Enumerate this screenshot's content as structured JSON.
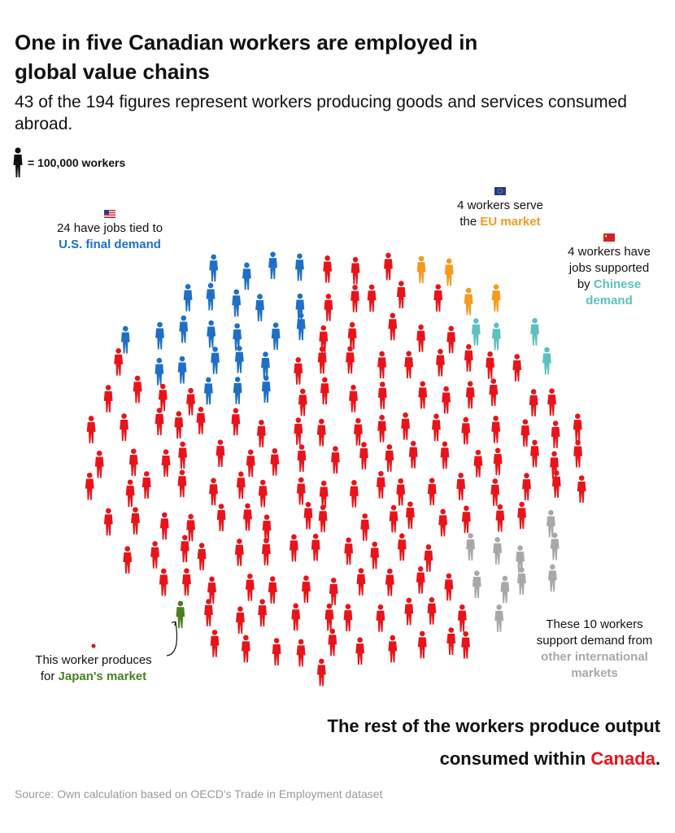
{
  "header": {
    "title": "One in five Canadian workers are employed in global value chains",
    "subtitle": "43 of the 194 figures represent workers producing goods and services consumed abroad."
  },
  "legend": {
    "text": "= 100,000 workers"
  },
  "annotations": {
    "us": {
      "line1": "24 have jobs tied to",
      "highlight": "U.S. final demand"
    },
    "eu": {
      "line1": "4 workers serve",
      "prefix": "the ",
      "highlight": "EU market"
    },
    "cn": {
      "line1": "4 workers have",
      "line2": "jobs supported",
      "prefix": "by ",
      "highlight": "Chinese",
      "highlight2": "demand"
    },
    "jp": {
      "line1": "This worker produces",
      "prefix": "for ",
      "highlight": "Japan's market"
    },
    "other": {
      "line1": "These 10 workers",
      "line2": "support demand from",
      "highlight": "other international",
      "highlight2": "markets"
    }
  },
  "conclusion": {
    "line1": "The rest of the workers produce output",
    "prefix": "consumed within ",
    "highlight": "Canada",
    "suffix": "."
  },
  "source": "Source: Own calculation based on OECD's Trade in Employment dataset",
  "colors": {
    "us": "#1f6fc6",
    "eu": "#f39a1f",
    "cn": "#5bc0be",
    "jp": "#4a7f24",
    "other": "#a8a8a8",
    "canada": "#e8141a",
    "legend_icon": "#111111"
  },
  "chart_data": {
    "type": "pictogram",
    "unit": "100,000 workers",
    "total_icons": 194,
    "series": [
      {
        "name": "U.S. final demand",
        "value": 24,
        "color": "#1f6fc6"
      },
      {
        "name": "EU market",
        "value": 4,
        "color": "#f39a1f"
      },
      {
        "name": "Chinese demand",
        "value": 4,
        "color": "#5bc0be"
      },
      {
        "name": "Japan's market",
        "value": 1,
        "color": "#4a7f24"
      },
      {
        "name": "other international markets",
        "value": 10,
        "color": "#a8a8a8"
      },
      {
        "name": "Canada",
        "value": 151,
        "color": "#e8141a"
      }
    ]
  }
}
